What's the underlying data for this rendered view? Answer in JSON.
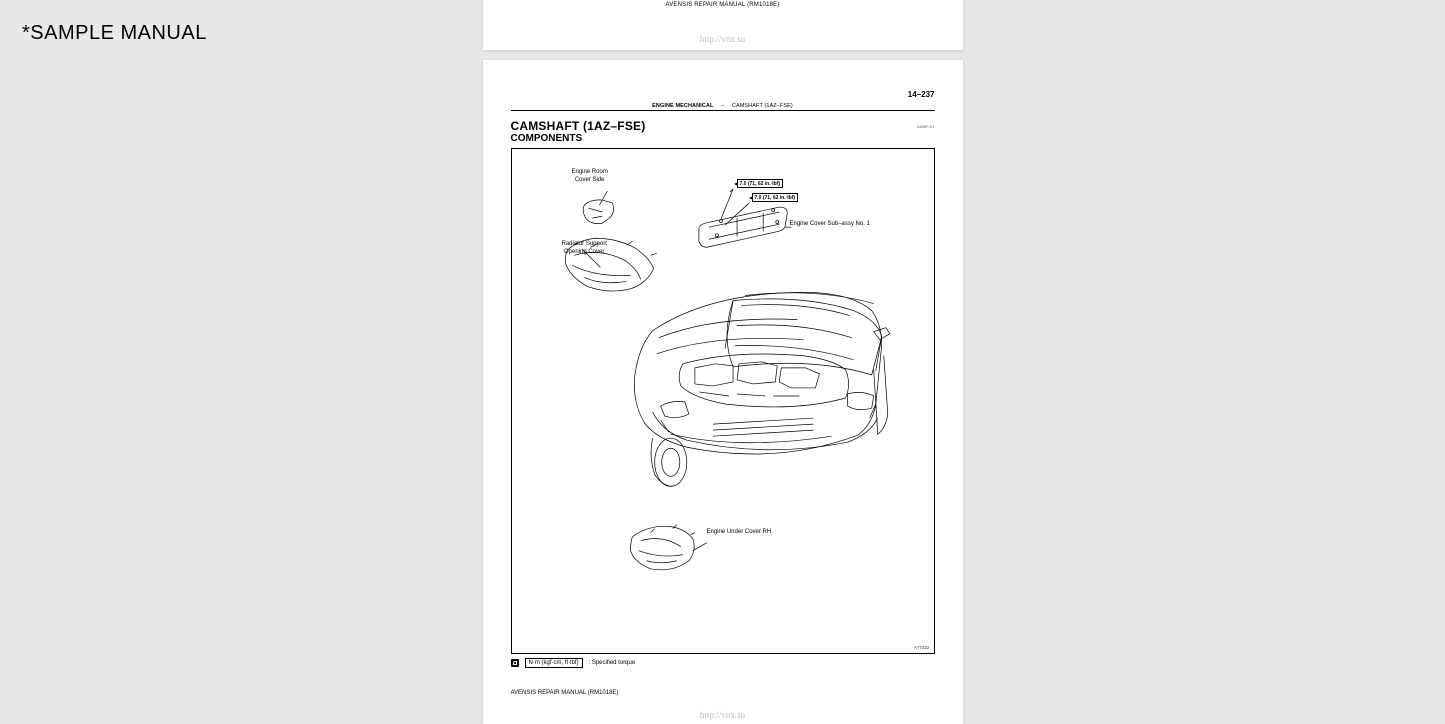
{
  "watermark": "*SAMPLE MANUAL",
  "manual_footer": "AVENSIS REPAIR MANUAL   (RM1018E)",
  "source_url": "http://vnx.su",
  "page_main": {
    "page_number": "14–237",
    "section_header_bold": "ENGINE MECHANICAL",
    "section_header_dash": "–",
    "section_header_rest": "CAMSHAFT (1AZ–FSE)",
    "doc_code": "140BP-01",
    "title": "CAMSHAFT (1AZ–FSE)",
    "subtitle": "COMPONENTS",
    "diagram": {
      "figure_code": "A77322",
      "labels": {
        "engine_room_cover_side": "Engine Room\nCover Side",
        "radiator_support": "Radiator Support\nOpening Cover",
        "engine_cover_sub": "Engine Cover Sub–assy No. 1",
        "engine_under_cover": "Engine Under Cover RH",
        "torque_spec": "7.0 (71, 62 in.·lbf)"
      }
    },
    "legend": {
      "torque_unit_box": "N·m (kgf·cm, ft·lbf)",
      "torque_label": ": Specified torque"
    }
  }
}
